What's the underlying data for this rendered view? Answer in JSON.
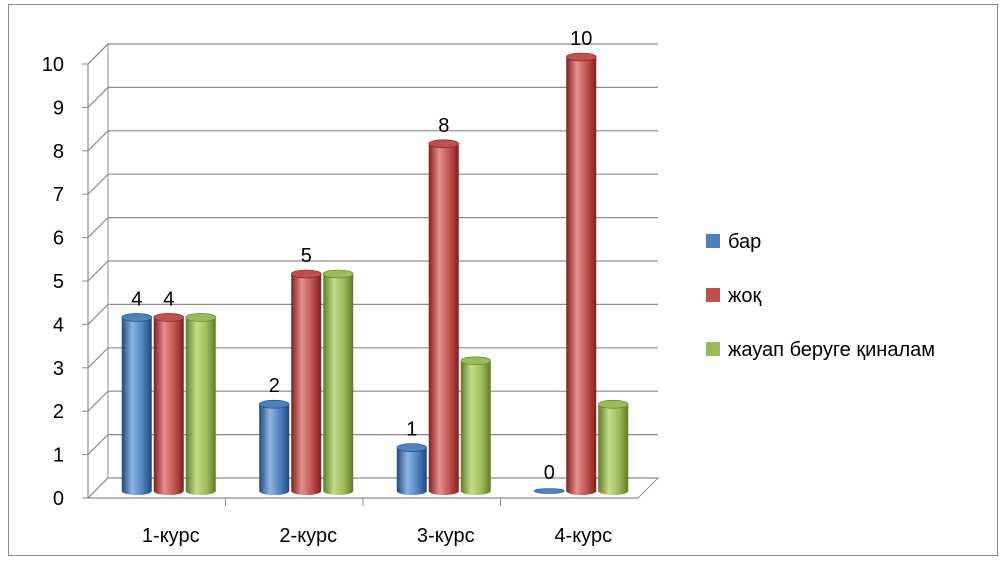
{
  "chart_data": {
    "type": "bar",
    "categories": [
      "1-курс",
      "2-курс",
      "3-курс",
      "4-курс"
    ],
    "series": [
      {
        "name": "бар",
        "values": [
          4,
          2,
          1,
          0
        ],
        "labels": [
          "4",
          "2",
          "1",
          "0"
        ]
      },
      {
        "name": "жоқ",
        "values": [
          4,
          5,
          8,
          10
        ],
        "labels": [
          "4",
          "5",
          "8",
          "10"
        ]
      },
      {
        "name": "жауап беруге қиналам",
        "values": [
          4,
          5,
          3,
          2
        ],
        "labels": [
          "",
          "",
          "",
          ""
        ]
      }
    ],
    "ylim": [
      0,
      10
    ],
    "yticks": [
      "0",
      "1",
      "2",
      "3",
      "4",
      "5",
      "6",
      "7",
      "8",
      "9",
      "10"
    ],
    "grid": true,
    "legend_position": "right",
    "colors": {
      "бар": {
        "base": "#4f81bd",
        "light": "#8eb4e3",
        "dark": "#1f497d"
      },
      "жоқ": {
        "base": "#c0504d",
        "light": "#e6908e",
        "dark": "#7f1f1d"
      },
      "жауап беруге қиналам": {
        "base": "#9bbb59",
        "light": "#c4dc8a",
        "dark": "#5f7a2a"
      }
    }
  }
}
